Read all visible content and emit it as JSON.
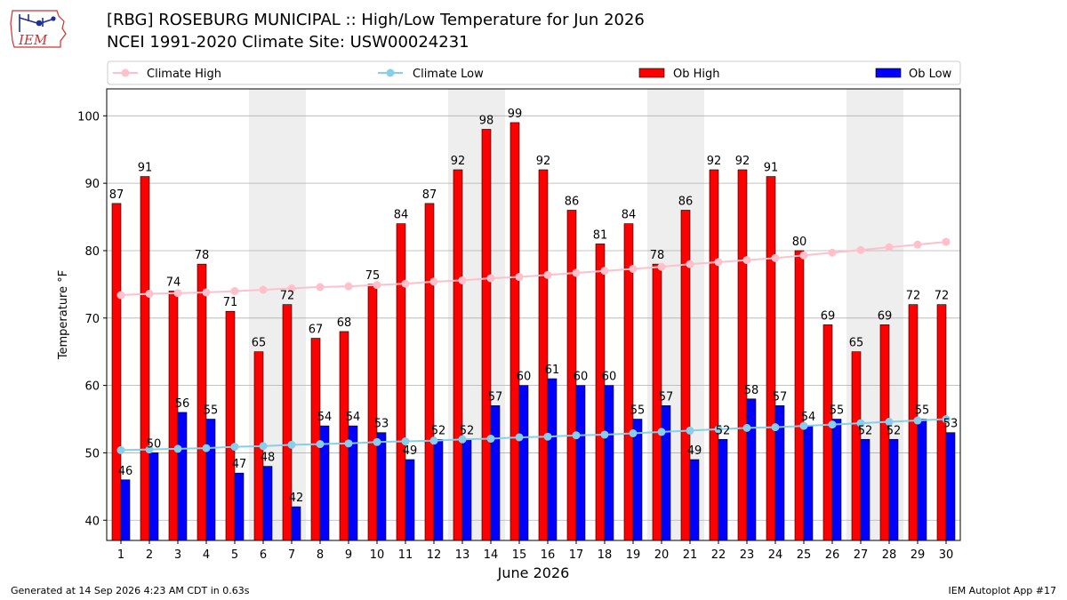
{
  "header": {
    "title": "[RBG] ROSEBURG MUNICIPAL :: High/Low Temperature for Jun 2026",
    "subtitle": "NCEI 1991-2020 Climate Site: USW00024231",
    "logo_text": "IEM"
  },
  "footer": {
    "generated": "Generated at 14 Sep 2026 4:23 AM CDT in 0.63s",
    "app": "IEM Autoplot App #17"
  },
  "colors": {
    "ob_high": "#ff0000",
    "ob_low": "#0000ff",
    "climate_high": "#ffc0cb",
    "climate_low": "#87ceeb",
    "weekend_band": "#eeeeee",
    "grid": "#b0b0b0"
  },
  "chart_data": {
    "type": "bar",
    "xlabel": "June 2026",
    "ylabel": "Temperature °F",
    "ylim": [
      37,
      104
    ],
    "yticks": [
      40,
      50,
      60,
      70,
      80,
      90,
      100
    ],
    "grid": true,
    "legend_position": "top",
    "categories": [
      "1",
      "2",
      "3",
      "4",
      "5",
      "6",
      "7",
      "8",
      "9",
      "10",
      "11",
      "12",
      "13",
      "14",
      "15",
      "16",
      "17",
      "18",
      "19",
      "20",
      "21",
      "22",
      "23",
      "24",
      "25",
      "26",
      "27",
      "28",
      "29",
      "30"
    ],
    "shaded_days": [
      6,
      7,
      13,
      14,
      20,
      21,
      27,
      28
    ],
    "series": [
      {
        "name": "Climate High",
        "kind": "line",
        "values": [
          73.4,
          73.6,
          73.7,
          73.8,
          74.0,
          74.2,
          74.4,
          74.6,
          74.7,
          74.9,
          75.1,
          75.4,
          75.6,
          75.9,
          76.1,
          76.4,
          76.7,
          77.0,
          77.3,
          77.6,
          78.0,
          78.3,
          78.6,
          78.9,
          79.3,
          79.7,
          80.1,
          80.5,
          80.9,
          81.3
        ]
      },
      {
        "name": "Climate Low",
        "kind": "line",
        "values": [
          50.4,
          50.5,
          50.6,
          50.7,
          50.9,
          51.0,
          51.2,
          51.3,
          51.4,
          51.6,
          51.7,
          51.8,
          52.0,
          52.1,
          52.3,
          52.4,
          52.6,
          52.7,
          52.9,
          53.1,
          53.3,
          53.5,
          53.7,
          53.8,
          54.0,
          54.2,
          54.4,
          54.6,
          54.8,
          55.0
        ]
      },
      {
        "name": "Ob High",
        "kind": "bar",
        "values": [
          87,
          91,
          74,
          78,
          71,
          65,
          72,
          67,
          68,
          75,
          84,
          87,
          92,
          98,
          99,
          92,
          86,
          81,
          84,
          78,
          86,
          92,
          92,
          91,
          80,
          69,
          65,
          69,
          72,
          72
        ]
      },
      {
        "name": "Ob Low",
        "kind": "bar",
        "values": [
          46,
          50,
          56,
          55,
          47,
          48,
          42,
          54,
          54,
          53,
          49,
          52,
          52,
          57,
          60,
          61,
          60,
          60,
          55,
          57,
          49,
          52,
          58,
          57,
          54,
          55,
          52,
          52,
          55,
          53
        ]
      }
    ]
  }
}
